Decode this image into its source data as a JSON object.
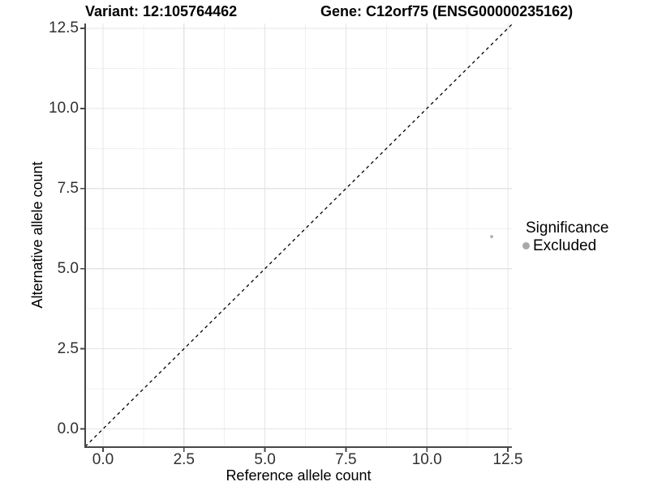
{
  "chart_data": {
    "type": "scatter",
    "title_left": "Variant: 12:105764462",
    "title_right": "Gene: C12orf75 (ENSG00000235162)",
    "xlabel": "Reference allele count",
    "ylabel": "Alternative allele count",
    "x_range": [
      0,
      12.5
    ],
    "y_range": [
      0,
      12.5
    ],
    "x_ticks": [
      {
        "value": 0,
        "label": "0.0"
      },
      {
        "value": 2.5,
        "label": "2.5"
      },
      {
        "value": 5,
        "label": "5.0"
      },
      {
        "value": 7.5,
        "label": "7.5"
      },
      {
        "value": 10,
        "label": "10.0"
      },
      {
        "value": 12.5,
        "label": "12.5"
      }
    ],
    "y_ticks": [
      {
        "value": 0,
        "label": "0.0"
      },
      {
        "value": 2.5,
        "label": "2.5"
      },
      {
        "value": 5,
        "label": "5.0"
      },
      {
        "value": 7.5,
        "label": "7.5"
      },
      {
        "value": 10,
        "label": "10.0"
      },
      {
        "value": 12.5,
        "label": "12.5"
      }
    ],
    "x_minor_ticks": [
      1.25,
      3.75,
      6.25,
      8.75,
      11.25
    ],
    "y_minor_ticks": [
      1.25,
      3.75,
      6.25,
      8.75,
      11.25
    ],
    "grid": {
      "major": true,
      "minor": true
    },
    "identity_line": {
      "slope": 1,
      "intercept": 0,
      "style": "dashed",
      "color": "#000000"
    },
    "series": [
      {
        "name": "Excluded",
        "color": "#b5b5b5",
        "point_radius": 2,
        "points": [
          {
            "x": 12,
            "y": 6
          }
        ]
      }
    ],
    "legend": {
      "title": "Significance",
      "position": "right",
      "items": [
        {
          "label": "Excluded",
          "color": "#a9a9a9",
          "key_radius": 4.5
        }
      ]
    },
    "colors": {
      "axis_line": "#474747",
      "tick_mark": "#474747",
      "grid_major": "#e4e4e4",
      "grid_minor": "#f0f0f0",
      "tick_text": "#303030",
      "background": "#ffffff"
    }
  }
}
